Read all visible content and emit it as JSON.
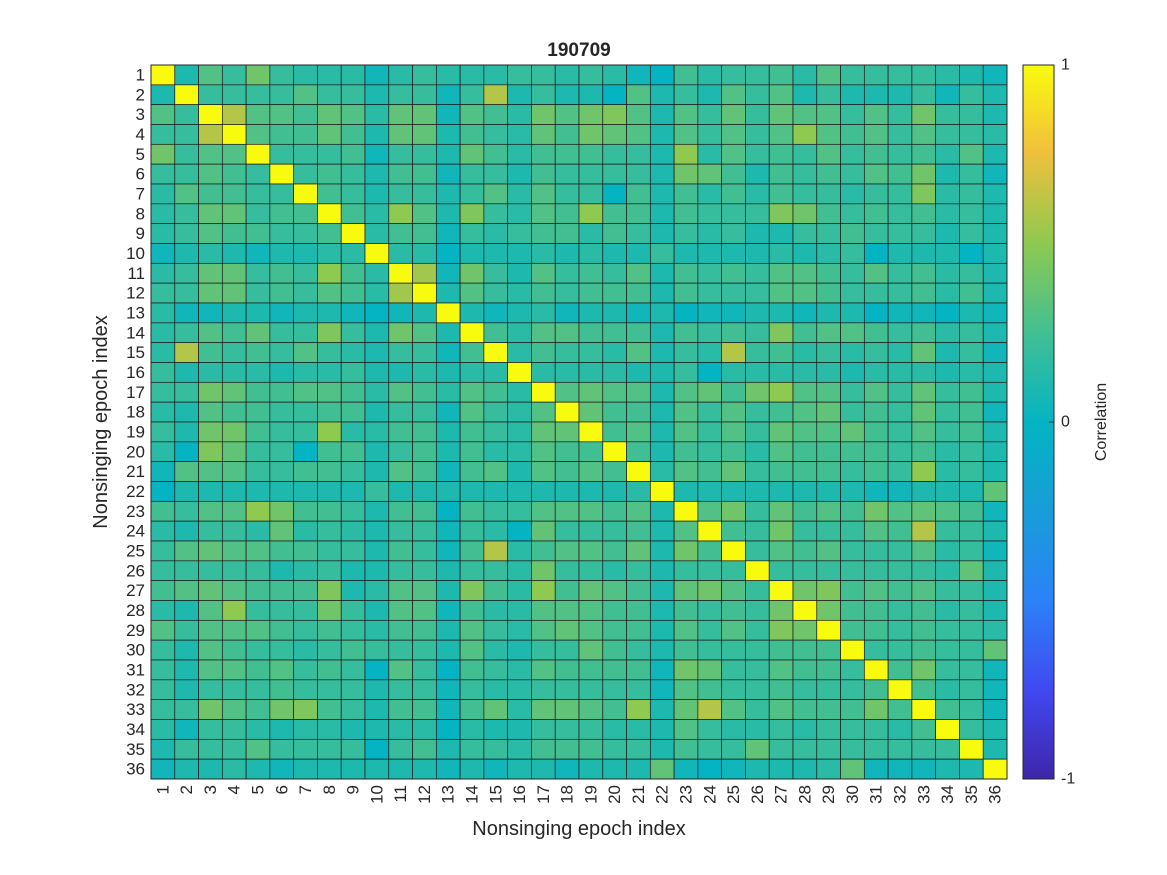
{
  "chart_data": {
    "type": "heatmap",
    "title": "190709",
    "xlabel": "Nonsinging epoch index",
    "ylabel": "Nonsinging epoch index",
    "x_categories": [
      "1",
      "2",
      "3",
      "4",
      "5",
      "6",
      "7",
      "8",
      "9",
      "10",
      "11",
      "12",
      "13",
      "14",
      "15",
      "16",
      "17",
      "18",
      "19",
      "20",
      "21",
      "22",
      "23",
      "24",
      "25",
      "26",
      "27",
      "28",
      "29",
      "30",
      "31",
      "32",
      "33",
      "34",
      "35",
      "36"
    ],
    "y_categories": [
      "1",
      "2",
      "3",
      "4",
      "5",
      "6",
      "7",
      "8",
      "9",
      "10",
      "11",
      "12",
      "13",
      "14",
      "15",
      "16",
      "17",
      "18",
      "19",
      "20",
      "21",
      "22",
      "23",
      "24",
      "25",
      "26",
      "27",
      "28",
      "29",
      "30",
      "31",
      "32",
      "33",
      "34",
      "35",
      "36"
    ],
    "colorbar": {
      "label": "Correlation",
      "ticks": [
        -1,
        0,
        1
      ],
      "tick_labels": [
        "-1",
        "0",
        "1"
      ],
      "range": [
        -1,
        1
      ],
      "colormap": "parula"
    },
    "values": [
      [
        1.0,
        0.1,
        0.3,
        0.2,
        0.4,
        0.2,
        0.15,
        0.15,
        0.15,
        0.05,
        0.15,
        0.2,
        0.15,
        0.15,
        0.15,
        0.2,
        0.2,
        0.15,
        0.2,
        0.15,
        0.05,
        0.0,
        0.25,
        0.15,
        0.2,
        0.2,
        0.25,
        0.15,
        0.3,
        0.2,
        0.2,
        0.2,
        0.2,
        0.15,
        0.1,
        0.05
      ],
      [
        0.1,
        1.0,
        0.2,
        0.2,
        0.2,
        0.2,
        0.3,
        0.2,
        0.2,
        0.1,
        0.2,
        0.2,
        0.05,
        0.2,
        0.6,
        0.1,
        0.2,
        0.1,
        0.1,
        0.0,
        0.3,
        0.1,
        0.2,
        0.1,
        0.3,
        0.2,
        0.3,
        0.1,
        0.2,
        0.1,
        0.1,
        0.1,
        0.2,
        0.05,
        0.2,
        0.1
      ],
      [
        0.3,
        0.2,
        1.0,
        0.6,
        0.3,
        0.3,
        0.25,
        0.35,
        0.3,
        0.15,
        0.35,
        0.35,
        0.05,
        0.3,
        0.25,
        0.15,
        0.4,
        0.3,
        0.4,
        0.45,
        0.3,
        0.1,
        0.3,
        0.2,
        0.35,
        0.2,
        0.35,
        0.3,
        0.3,
        0.2,
        0.3,
        0.2,
        0.4,
        0.2,
        0.2,
        0.1
      ],
      [
        0.2,
        0.2,
        0.6,
        1.0,
        0.3,
        0.25,
        0.25,
        0.35,
        0.25,
        0.1,
        0.35,
        0.35,
        0.1,
        0.25,
        0.2,
        0.15,
        0.35,
        0.25,
        0.4,
        0.35,
        0.3,
        0.1,
        0.3,
        0.2,
        0.3,
        0.2,
        0.3,
        0.5,
        0.3,
        0.25,
        0.3,
        0.2,
        0.3,
        0.2,
        0.2,
        0.15
      ],
      [
        0.4,
        0.2,
        0.3,
        0.3,
        1.0,
        0.2,
        0.2,
        0.2,
        0.25,
        0.05,
        0.2,
        0.2,
        0.1,
        0.35,
        0.25,
        0.15,
        0.25,
        0.25,
        0.25,
        0.2,
        0.2,
        0.1,
        0.5,
        0.15,
        0.3,
        0.2,
        0.25,
        0.2,
        0.3,
        0.2,
        0.25,
        0.2,
        0.25,
        0.15,
        0.3,
        0.1
      ],
      [
        0.2,
        0.2,
        0.3,
        0.25,
        0.2,
        1.0,
        0.2,
        0.25,
        0.2,
        0.1,
        0.25,
        0.25,
        0.05,
        0.2,
        0.2,
        0.1,
        0.25,
        0.2,
        0.2,
        0.2,
        0.2,
        0.1,
        0.4,
        0.35,
        0.25,
        0.1,
        0.25,
        0.2,
        0.25,
        0.2,
        0.3,
        0.25,
        0.4,
        0.1,
        0.2,
        0.05
      ],
      [
        0.15,
        0.3,
        0.25,
        0.25,
        0.2,
        0.2,
        1.0,
        0.25,
        0.2,
        0.1,
        0.2,
        0.2,
        0.1,
        0.2,
        0.3,
        0.15,
        0.3,
        0.2,
        0.2,
        0.0,
        0.25,
        0.1,
        0.25,
        0.15,
        0.25,
        0.15,
        0.25,
        0.2,
        0.2,
        0.15,
        0.2,
        0.2,
        0.45,
        0.15,
        0.2,
        0.1
      ],
      [
        0.15,
        0.2,
        0.35,
        0.35,
        0.2,
        0.25,
        0.25,
        1.0,
        0.25,
        0.15,
        0.5,
        0.3,
        0.1,
        0.45,
        0.2,
        0.15,
        0.3,
        0.25,
        0.5,
        0.25,
        0.25,
        0.1,
        0.25,
        0.2,
        0.2,
        0.2,
        0.45,
        0.4,
        0.25,
        0.2,
        0.25,
        0.2,
        0.25,
        0.15,
        0.2,
        0.1
      ],
      [
        0.15,
        0.2,
        0.3,
        0.25,
        0.25,
        0.2,
        0.2,
        0.25,
        1.0,
        0.15,
        0.25,
        0.25,
        0.05,
        0.2,
        0.15,
        0.2,
        0.25,
        0.25,
        0.15,
        0.25,
        0.2,
        0.1,
        0.2,
        0.15,
        0.2,
        0.1,
        0.1,
        0.2,
        0.2,
        0.25,
        0.2,
        0.2,
        0.2,
        0.1,
        0.2,
        0.1
      ],
      [
        0.05,
        0.1,
        0.15,
        0.1,
        0.05,
        0.1,
        0.1,
        0.15,
        0.15,
        1.0,
        0.15,
        0.15,
        0.0,
        0.1,
        0.1,
        0.1,
        0.15,
        0.1,
        0.15,
        0.1,
        0.1,
        0.2,
        0.1,
        0.1,
        0.1,
        0.1,
        0.15,
        0.1,
        0.15,
        0.2,
        0.0,
        0.1,
        0.1,
        0.1,
        0.0,
        0.1
      ],
      [
        0.15,
        0.2,
        0.35,
        0.35,
        0.2,
        0.25,
        0.2,
        0.5,
        0.25,
        0.15,
        1.0,
        0.55,
        0.05,
        0.4,
        0.2,
        0.1,
        0.3,
        0.2,
        0.25,
        0.2,
        0.3,
        0.1,
        0.25,
        0.2,
        0.25,
        0.2,
        0.3,
        0.3,
        0.25,
        0.2,
        0.3,
        0.2,
        0.25,
        0.15,
        0.2,
        0.1
      ],
      [
        0.2,
        0.2,
        0.35,
        0.35,
        0.2,
        0.25,
        0.2,
        0.3,
        0.25,
        0.15,
        0.55,
        1.0,
        0.1,
        0.3,
        0.2,
        0.15,
        0.25,
        0.2,
        0.25,
        0.25,
        0.25,
        0.1,
        0.25,
        0.2,
        0.2,
        0.2,
        0.3,
        0.3,
        0.25,
        0.2,
        0.2,
        0.2,
        0.25,
        0.15,
        0.25,
        0.1
      ],
      [
        0.15,
        0.05,
        0.05,
        0.1,
        0.1,
        0.05,
        0.1,
        0.1,
        0.05,
        0.0,
        0.05,
        0.1,
        1.0,
        0.1,
        0.05,
        0.1,
        0.15,
        0.05,
        0.1,
        0.1,
        0.05,
        0.1,
        0.0,
        0.05,
        0.05,
        0.1,
        0.1,
        0.05,
        0.1,
        0.1,
        0.0,
        0.05,
        0.05,
        0.0,
        0.1,
        0.05
      ],
      [
        0.15,
        0.2,
        0.3,
        0.25,
        0.35,
        0.2,
        0.2,
        0.45,
        0.2,
        0.1,
        0.4,
        0.3,
        0.1,
        1.0,
        0.25,
        0.15,
        0.3,
        0.3,
        0.25,
        0.25,
        0.25,
        0.1,
        0.25,
        0.2,
        0.25,
        0.2,
        0.45,
        0.25,
        0.3,
        0.3,
        0.25,
        0.2,
        0.25,
        0.15,
        0.2,
        0.1
      ],
      [
        0.15,
        0.6,
        0.25,
        0.2,
        0.25,
        0.2,
        0.3,
        0.2,
        0.15,
        0.1,
        0.2,
        0.2,
        0.05,
        0.25,
        1.0,
        0.15,
        0.25,
        0.2,
        0.2,
        0.15,
        0.3,
        0.1,
        0.2,
        0.15,
        0.6,
        0.2,
        0.25,
        0.15,
        0.2,
        0.15,
        0.2,
        0.15,
        0.35,
        0.1,
        0.2,
        0.05
      ],
      [
        0.2,
        0.1,
        0.15,
        0.15,
        0.15,
        0.1,
        0.15,
        0.15,
        0.2,
        0.1,
        0.1,
        0.15,
        0.1,
        0.15,
        0.15,
        1.0,
        0.15,
        0.15,
        0.15,
        0.15,
        0.1,
        0.1,
        0.2,
        0.0,
        0.15,
        0.15,
        0.15,
        0.15,
        0.15,
        0.1,
        0.15,
        0.15,
        0.15,
        0.1,
        0.15,
        0.1
      ],
      [
        0.2,
        0.2,
        0.4,
        0.35,
        0.25,
        0.25,
        0.3,
        0.3,
        0.25,
        0.15,
        0.3,
        0.25,
        0.15,
        0.3,
        0.25,
        0.15,
        1.0,
        0.3,
        0.35,
        0.3,
        0.3,
        0.1,
        0.3,
        0.35,
        0.25,
        0.4,
        0.5,
        0.3,
        0.3,
        0.2,
        0.3,
        0.2,
        0.35,
        0.2,
        0.25,
        0.1
      ],
      [
        0.15,
        0.1,
        0.3,
        0.25,
        0.25,
        0.2,
        0.2,
        0.25,
        0.25,
        0.1,
        0.2,
        0.2,
        0.05,
        0.3,
        0.2,
        0.15,
        0.3,
        1.0,
        0.35,
        0.25,
        0.25,
        0.1,
        0.3,
        0.2,
        0.3,
        0.2,
        0.25,
        0.3,
        0.35,
        0.2,
        0.25,
        0.2,
        0.35,
        0.2,
        0.25,
        0.05
      ],
      [
        0.2,
        0.1,
        0.4,
        0.4,
        0.25,
        0.2,
        0.2,
        0.5,
        0.15,
        0.15,
        0.25,
        0.25,
        0.1,
        0.25,
        0.2,
        0.15,
        0.35,
        0.35,
        1.0,
        0.25,
        0.3,
        0.1,
        0.3,
        0.2,
        0.3,
        0.2,
        0.35,
        0.3,
        0.3,
        0.35,
        0.25,
        0.2,
        0.3,
        0.2,
        0.25,
        0.1
      ],
      [
        0.15,
        0.0,
        0.45,
        0.35,
        0.2,
        0.2,
        0.0,
        0.25,
        0.25,
        0.1,
        0.2,
        0.25,
        0.1,
        0.25,
        0.15,
        0.15,
        0.3,
        0.25,
        0.25,
        1.0,
        0.25,
        0.1,
        0.25,
        0.2,
        0.25,
        0.15,
        0.3,
        0.25,
        0.25,
        0.25,
        0.25,
        0.2,
        0.25,
        0.15,
        0.2,
        0.1
      ],
      [
        0.05,
        0.3,
        0.3,
        0.3,
        0.2,
        0.2,
        0.25,
        0.25,
        0.2,
        0.1,
        0.3,
        0.25,
        0.05,
        0.25,
        0.3,
        0.1,
        0.3,
        0.25,
        0.3,
        0.25,
        1.0,
        0.15,
        0.3,
        0.25,
        0.35,
        0.2,
        0.25,
        0.25,
        0.25,
        0.2,
        0.25,
        0.2,
        0.5,
        0.15,
        0.2,
        0.1
      ],
      [
        0.0,
        0.1,
        0.1,
        0.1,
        0.1,
        0.1,
        0.1,
        0.1,
        0.1,
        0.2,
        0.1,
        0.1,
        0.1,
        0.1,
        0.1,
        0.1,
        0.1,
        0.1,
        0.1,
        0.1,
        0.15,
        1.0,
        0.1,
        0.1,
        0.1,
        0.1,
        0.1,
        0.1,
        0.1,
        0.1,
        0.05,
        0.05,
        0.1,
        0.1,
        0.1,
        0.35
      ],
      [
        0.25,
        0.2,
        0.3,
        0.3,
        0.5,
        0.4,
        0.25,
        0.25,
        0.2,
        0.1,
        0.25,
        0.25,
        0.0,
        0.25,
        0.2,
        0.2,
        0.3,
        0.3,
        0.3,
        0.25,
        0.3,
        0.1,
        1.0,
        0.3,
        0.4,
        0.2,
        0.35,
        0.25,
        0.3,
        0.25,
        0.4,
        0.3,
        0.35,
        0.3,
        0.25,
        0.05
      ],
      [
        0.15,
        0.1,
        0.2,
        0.2,
        0.15,
        0.35,
        0.15,
        0.2,
        0.15,
        0.1,
        0.2,
        0.2,
        0.05,
        0.2,
        0.15,
        0.0,
        0.35,
        0.2,
        0.2,
        0.2,
        0.25,
        0.1,
        0.3,
        1.0,
        0.25,
        0.2,
        0.4,
        0.2,
        0.2,
        0.2,
        0.3,
        0.25,
        0.6,
        0.2,
        0.2,
        0.1
      ],
      [
        0.2,
        0.3,
        0.35,
        0.3,
        0.3,
        0.25,
        0.25,
        0.2,
        0.2,
        0.1,
        0.25,
        0.2,
        0.05,
        0.25,
        0.6,
        0.15,
        0.25,
        0.3,
        0.3,
        0.25,
        0.35,
        0.1,
        0.4,
        0.25,
        1.0,
        0.2,
        0.3,
        0.25,
        0.3,
        0.2,
        0.2,
        0.2,
        0.3,
        0.15,
        0.2,
        0.05
      ],
      [
        0.2,
        0.2,
        0.2,
        0.2,
        0.2,
        0.1,
        0.15,
        0.2,
        0.1,
        0.1,
        0.2,
        0.2,
        0.1,
        0.2,
        0.2,
        0.15,
        0.4,
        0.2,
        0.2,
        0.15,
        0.2,
        0.1,
        0.2,
        0.2,
        0.2,
        1.0,
        0.2,
        0.2,
        0.2,
        0.2,
        0.2,
        0.2,
        0.2,
        0.15,
        0.35,
        0.1
      ],
      [
        0.25,
        0.3,
        0.35,
        0.3,
        0.25,
        0.25,
        0.25,
        0.45,
        0.1,
        0.15,
        0.3,
        0.3,
        0.1,
        0.45,
        0.25,
        0.15,
        0.5,
        0.25,
        0.35,
        0.3,
        0.25,
        0.1,
        0.35,
        0.4,
        0.3,
        0.2,
        1.0,
        0.4,
        0.45,
        0.25,
        0.3,
        0.25,
        0.3,
        0.2,
        0.2,
        0.1
      ],
      [
        0.15,
        0.1,
        0.3,
        0.5,
        0.2,
        0.2,
        0.2,
        0.4,
        0.2,
        0.1,
        0.3,
        0.3,
        0.05,
        0.25,
        0.15,
        0.15,
        0.3,
        0.3,
        0.3,
        0.25,
        0.25,
        0.1,
        0.25,
        0.2,
        0.25,
        0.2,
        0.4,
        1.0,
        0.4,
        0.25,
        0.25,
        0.2,
        0.25,
        0.15,
        0.2,
        0.1
      ],
      [
        0.3,
        0.2,
        0.3,
        0.3,
        0.3,
        0.25,
        0.2,
        0.25,
        0.2,
        0.15,
        0.25,
        0.25,
        0.1,
        0.3,
        0.2,
        0.15,
        0.3,
        0.35,
        0.3,
        0.25,
        0.25,
        0.1,
        0.3,
        0.2,
        0.3,
        0.2,
        0.45,
        0.4,
        1.0,
        0.25,
        0.25,
        0.2,
        0.25,
        0.2,
        0.2,
        0.15
      ],
      [
        0.2,
        0.1,
        0.3,
        0.25,
        0.2,
        0.2,
        0.15,
        0.2,
        0.25,
        0.2,
        0.2,
        0.2,
        0.1,
        0.3,
        0.15,
        0.1,
        0.2,
        0.2,
        0.35,
        0.25,
        0.2,
        0.1,
        0.25,
        0.2,
        0.2,
        0.2,
        0.25,
        0.25,
        0.25,
        1.0,
        0.2,
        0.2,
        0.25,
        0.2,
        0.2,
        0.35
      ],
      [
        0.2,
        0.1,
        0.3,
        0.3,
        0.25,
        0.3,
        0.2,
        0.25,
        0.2,
        0.0,
        0.3,
        0.2,
        0.0,
        0.25,
        0.2,
        0.15,
        0.3,
        0.25,
        0.25,
        0.25,
        0.25,
        0.05,
        0.4,
        0.35,
        0.2,
        0.2,
        0.3,
        0.25,
        0.25,
        0.2,
        1.0,
        0.25,
        0.4,
        0.2,
        0.2,
        0.05
      ],
      [
        0.2,
        0.1,
        0.2,
        0.2,
        0.2,
        0.25,
        0.2,
        0.2,
        0.2,
        0.1,
        0.2,
        0.2,
        0.05,
        0.2,
        0.15,
        0.15,
        0.2,
        0.2,
        0.2,
        0.2,
        0.2,
        0.05,
        0.3,
        0.25,
        0.2,
        0.2,
        0.25,
        0.2,
        0.2,
        0.2,
        0.25,
        1.0,
        0.25,
        0.15,
        0.2,
        0.05
      ],
      [
        0.2,
        0.2,
        0.4,
        0.3,
        0.25,
        0.4,
        0.45,
        0.25,
        0.2,
        0.1,
        0.25,
        0.25,
        0.05,
        0.25,
        0.35,
        0.15,
        0.35,
        0.35,
        0.3,
        0.25,
        0.5,
        0.1,
        0.35,
        0.6,
        0.3,
        0.2,
        0.3,
        0.25,
        0.25,
        0.25,
        0.4,
        0.25,
        1.0,
        0.25,
        0.2,
        0.05
      ],
      [
        0.15,
        0.05,
        0.2,
        0.2,
        0.15,
        0.1,
        0.15,
        0.15,
        0.1,
        0.1,
        0.15,
        0.15,
        0.0,
        0.15,
        0.1,
        0.1,
        0.2,
        0.2,
        0.2,
        0.15,
        0.15,
        0.1,
        0.3,
        0.2,
        0.15,
        0.15,
        0.2,
        0.15,
        0.2,
        0.2,
        0.2,
        0.15,
        0.25,
        1.0,
        0.2,
        0.1
      ],
      [
        0.1,
        0.2,
        0.2,
        0.2,
        0.3,
        0.2,
        0.2,
        0.2,
        0.2,
        0.0,
        0.2,
        0.25,
        0.1,
        0.2,
        0.2,
        0.15,
        0.25,
        0.25,
        0.25,
        0.2,
        0.2,
        0.1,
        0.25,
        0.2,
        0.2,
        0.35,
        0.2,
        0.2,
        0.2,
        0.2,
        0.2,
        0.2,
        0.2,
        0.2,
        1.0,
        0.1
      ],
      [
        0.05,
        0.1,
        0.1,
        0.15,
        0.1,
        0.05,
        0.1,
        0.1,
        0.1,
        0.1,
        0.1,
        0.1,
        0.05,
        0.1,
        0.05,
        0.1,
        0.1,
        0.05,
        0.1,
        0.1,
        0.1,
        0.35,
        0.05,
        0.0,
        0.05,
        0.1,
        0.1,
        0.1,
        0.15,
        0.35,
        0.05,
        0.05,
        0.05,
        0.1,
        0.1,
        1.0
      ]
    ]
  }
}
